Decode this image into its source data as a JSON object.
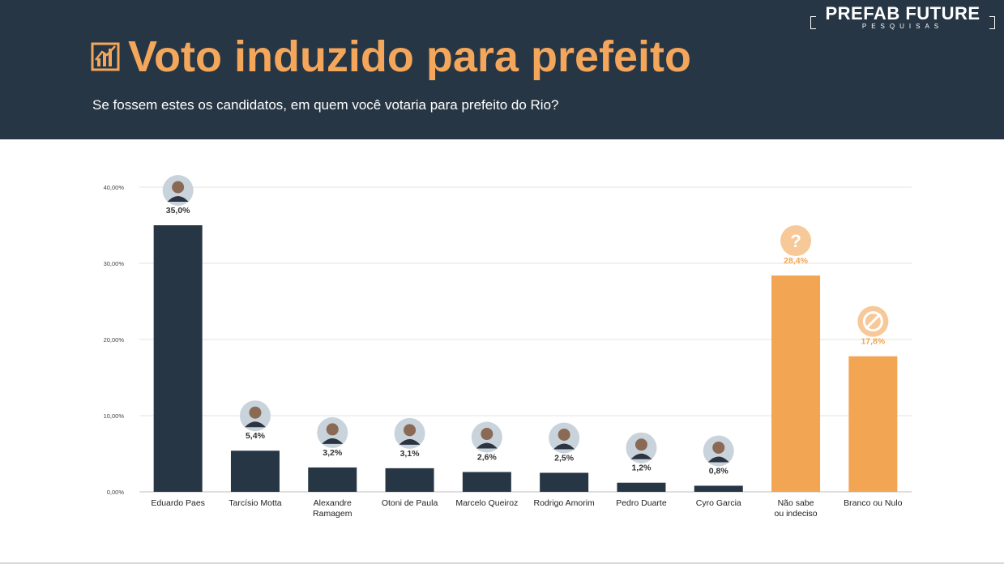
{
  "header": {
    "logo_main": "PREFAB FUTURE",
    "logo_sub": "PESQUISAS",
    "title": "Voto induzido para prefeito",
    "subtitle": "Se fossem estes os candidatos, em quem você votaria para prefeito do Rio?"
  },
  "colors": {
    "header_bg": "#263645",
    "accent": "#f4a65a",
    "bar_candidate": "#263645",
    "bar_other": "#f2a553"
  },
  "chart_data": {
    "type": "bar",
    "categories": [
      "Eduardo Paes",
      "Tarcísio Motta",
      "Alexandre Ramagem",
      "Otoni de Paula",
      "Marcelo Queiroz",
      "Rodrigo Amorim",
      "Pedro Duarte",
      "Cyro Garcia",
      "Não sabe ou indeciso",
      "Branco ou Nulo"
    ],
    "values": [
      35.0,
      5.4,
      3.2,
      3.1,
      2.6,
      2.5,
      1.2,
      0.8,
      28.4,
      17.8
    ],
    "value_labels": [
      "35,0%",
      "5,4%",
      "3,2%",
      "3,1%",
      "2,6%",
      "2,5%",
      "1,2%",
      "0,8%",
      "28,4%",
      "17,8%"
    ],
    "y_ticks": [
      0,
      10,
      20,
      30,
      40
    ],
    "y_tick_labels": [
      "0,00%",
      "10,00%",
      "20,00%",
      "30,00%",
      "40,00%"
    ],
    "ylim": [
      0,
      40
    ],
    "grid": true,
    "icons": [
      "candidate-photo",
      "candidate-photo",
      "candidate-photo",
      "candidate-photo",
      "candidate-photo",
      "candidate-photo",
      "candidate-photo",
      "candidate-photo",
      "question-icon",
      "null-icon"
    ],
    "highlight": [
      false,
      false,
      false,
      false,
      false,
      false,
      false,
      false,
      true,
      true
    ]
  }
}
